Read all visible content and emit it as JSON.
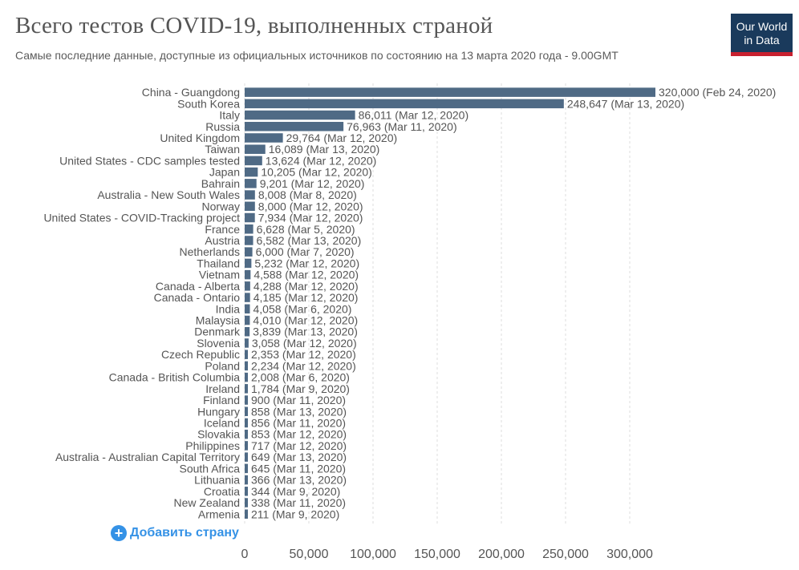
{
  "title": "Всего тестов COVID-19, выполненных страной",
  "subtitle": "Самые последние данные, доступные из официальных источников по состоянию на 13 марта 2020 года - 9.00GMT",
  "logo": {
    "line1": "Our World",
    "line2": "in Data",
    "bg_color": "#1a3a5c",
    "accent_color": "#c8202f"
  },
  "add_country": {
    "label": "Добавить страну",
    "icon": "plus-circle-icon",
    "color": "#3592e6"
  },
  "chart_data": {
    "type": "bar",
    "orientation": "horizontal",
    "bar_color": "#4f6a85",
    "xlim": [
      0,
      330000
    ],
    "xticks": [
      0,
      50000,
      100000,
      150000,
      200000,
      250000,
      300000
    ],
    "xtick_labels": [
      "0",
      "50,000",
      "100,000",
      "150,000",
      "200,000",
      "250,000",
      "300,000"
    ],
    "grid": "vertical dashed",
    "categories": [
      "China - Guangdong",
      "South Korea",
      "Italy",
      "Russia",
      "United Kingdom",
      "Taiwan",
      "United States - CDC samples tested",
      "Japan",
      "Bahrain",
      "Australia - New South Wales",
      "Norway",
      "United States - COVID-Tracking project",
      "France",
      "Austria",
      "Netherlands",
      "Thailand",
      "Vietnam",
      "Canada - Alberta",
      "Canada - Ontario",
      "India",
      "Malaysia",
      "Denmark",
      "Slovenia",
      "Czech Republic",
      "Poland",
      "Canada - British Columbia",
      "Ireland",
      "Finland",
      "Hungary",
      "Iceland",
      "Slovakia",
      "Philippines",
      "Australia - Australian Capital Territory",
      "South Africa",
      "Lithuania",
      "Croatia",
      "New Zealand",
      "Armenia"
    ],
    "values": [
      320000,
      248647,
      86011,
      76963,
      29764,
      16089,
      13624,
      10205,
      9201,
      8008,
      8000,
      7934,
      6628,
      6582,
      6000,
      5232,
      4588,
      4288,
      4185,
      4058,
      4010,
      3839,
      3058,
      2353,
      2234,
      2008,
      1784,
      900,
      858,
      856,
      853,
      717,
      649,
      645,
      366,
      344,
      338,
      211
    ],
    "value_labels": [
      "320,000 (Feb 24, 2020)",
      "248,647 (Mar 13, 2020)",
      "86,011 (Mar 12, 2020)",
      "76,963 (Mar 11, 2020)",
      "29,764 (Mar 12, 2020)",
      "16,089 (Mar 13, 2020)",
      "13,624 (Mar 12, 2020)",
      "10,205 (Mar 12, 2020)",
      "9,201 (Mar 12, 2020)",
      "8,008 (Mar 8, 2020)",
      "8,000 (Mar 12, 2020)",
      "7,934 (Mar 12, 2020)",
      "6,628 (Mar 5, 2020)",
      "6,582 (Mar 13, 2020)",
      "6,000 (Mar 7, 2020)",
      "5,232 (Mar 12, 2020)",
      "4,588 (Mar 12, 2020)",
      "4,288 (Mar 12, 2020)",
      "4,185 (Mar 12, 2020)",
      "4,058 (Mar 6, 2020)",
      "4,010 (Mar 12, 2020)",
      "3,839 (Mar 13, 2020)",
      "3,058 (Mar 12, 2020)",
      "2,353 (Mar 12, 2020)",
      "2,234 (Mar 12, 2020)",
      "2,008 (Mar 6, 2020)",
      "1,784 (Mar 9, 2020)",
      "900 (Mar 11, 2020)",
      "858 (Mar 13, 2020)",
      "856 (Mar 11, 2020)",
      "853 (Mar 12, 2020)",
      "717 (Mar 12, 2020)",
      "649 (Mar 13, 2020)",
      "645 (Mar 11, 2020)",
      "366 (Mar 13, 2020)",
      "344 (Mar 9, 2020)",
      "338 (Mar 11, 2020)",
      "211 (Mar 9, 2020)"
    ]
  }
}
